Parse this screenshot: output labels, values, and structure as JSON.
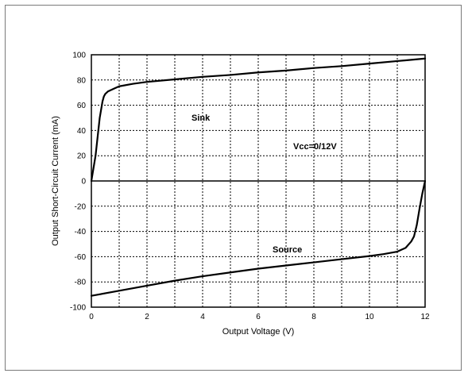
{
  "chart_data": {
    "type": "line",
    "xlabel": "Output Voltage (V)",
    "ylabel": "Output Short-Circuit Current (mA)",
    "xlim": [
      0,
      12
    ],
    "ylim": [
      -100,
      100
    ],
    "x_ticks": [
      "0",
      "2",
      "4",
      "6",
      "8",
      "10",
      "12"
    ],
    "y_ticks": [
      "100",
      "80",
      "60",
      "40",
      "20",
      "0",
      "-20",
      "-40",
      "-60",
      "-80",
      "-100"
    ],
    "grid": "dashed",
    "annotations": {
      "sink": "Sink",
      "source": "Source",
      "condition": "Vcc=0/12V"
    },
    "series": [
      {
        "x": [
          0.0,
          0.15,
          0.3,
          0.4,
          0.45,
          0.5,
          0.6,
          0.8,
          1.0,
          1.5,
          2.0,
          3.0,
          4.0,
          5.0,
          6.0,
          7.0,
          8.0,
          9.0,
          10.0,
          11.0,
          12.0
        ],
        "values": [
          0,
          20,
          50,
          63,
          67,
          69,
          71,
          73,
          75,
          77,
          78.5,
          80.5,
          82.5,
          84,
          86,
          87.5,
          89.5,
          91,
          93,
          95,
          97
        ]
      },
      {
        "x": [
          0.0,
          1.0,
          2.0,
          3.0,
          4.0,
          5.0,
          6.0,
          7.0,
          8.0,
          9.0,
          10.0,
          10.5,
          11.0,
          11.3,
          11.5,
          11.6,
          11.7,
          11.8,
          11.9,
          12.0
        ],
        "values": [
          -91,
          -87,
          -83,
          -79,
          -75.5,
          -72.5,
          -69.5,
          -67,
          -64.5,
          -62,
          -59.5,
          -58,
          -56,
          -53,
          -48,
          -44,
          -35,
          -22,
          -10,
          0
        ]
      }
    ]
  }
}
